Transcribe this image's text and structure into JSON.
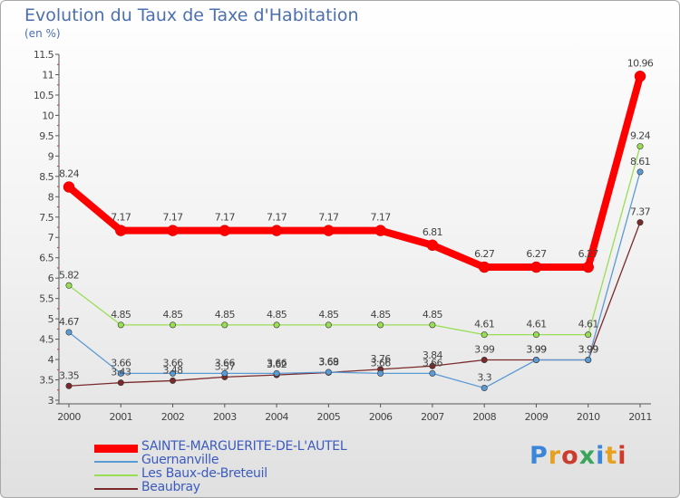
{
  "title": "Evolution du Taux de Taxe d'Habitation",
  "subtitle": "(en %)",
  "logo": {
    "text": "Proxiti",
    "colors": [
      "#3a86d8",
      "#e8a020",
      "#cc3b2b",
      "#3aa55a",
      "#3a86d8",
      "#e8a020",
      "#cc3b2b"
    ]
  },
  "chart_data": {
    "type": "line",
    "title": "Evolution du Taux de Taxe d'Habitation",
    "ylabel": "(en %)",
    "xlabel": "",
    "x": [
      "2000",
      "2001",
      "2002",
      "2003",
      "2004",
      "2005",
      "2006",
      "2007",
      "2008",
      "2009",
      "2010",
      "2011"
    ],
    "ylim": [
      3,
      11.5
    ],
    "yticks": [
      "3",
      "3.5",
      "4",
      "4.5",
      "5",
      "5.5",
      "6",
      "6.5",
      "7",
      "7.5",
      "8",
      "8.5",
      "9",
      "9.5",
      "10",
      "10.5",
      "11",
      "11.5"
    ],
    "grid": false,
    "series": [
      {
        "name": "SAINTE-MARGUERITE-DE-L'AUTEL",
        "color": "#ff0000",
        "values": [
          8.24,
          7.17,
          7.17,
          7.17,
          7.17,
          7.17,
          7.17,
          6.81,
          6.27,
          6.27,
          6.27,
          10.96
        ],
        "labels": [
          "8.24",
          "7.17",
          "7.17",
          "7.17",
          "7.17",
          "7.17",
          "7.17",
          "6.81",
          "6.27",
          "6.27",
          "6.27",
          "10.96"
        ]
      },
      {
        "name": "Guernanville",
        "color": "#5b9bd5",
        "values": [
          4.67,
          3.66,
          3.66,
          3.66,
          3.66,
          3.69,
          3.66,
          3.66,
          3.3,
          3.99,
          3.99,
          8.61
        ],
        "labels": [
          "4.67",
          "3.66",
          "3.66",
          "3.66",
          "3.66",
          "3.69",
          "3.66",
          "3.66",
          "3.3",
          "3.99",
          "3.99",
          "8.61"
        ]
      },
      {
        "name": "Les Baux-de-Breteuil",
        "color": "#99dd55",
        "values": [
          5.82,
          4.85,
          4.85,
          4.85,
          4.85,
          4.85,
          4.85,
          4.85,
          4.61,
          4.61,
          4.61,
          9.24
        ],
        "labels": [
          "5.82",
          "4.85",
          "4.85",
          "4.85",
          "4.85",
          "4.85",
          "4.85",
          "4.85",
          "4.61",
          "4.61",
          "4.61",
          "9.24"
        ]
      },
      {
        "name": "Beaubray",
        "color": "#7a2a2a",
        "values": [
          3.35,
          3.43,
          3.48,
          3.57,
          3.62,
          3.68,
          3.76,
          3.84,
          3.99,
          3.99,
          3.99,
          7.37
        ],
        "labels": [
          "3.35",
          "3.43",
          "3.48",
          "3.57",
          "3.62",
          "3.68",
          "3.76",
          "3.84",
          "3.99",
          "3.99",
          "3.99",
          "7.37"
        ]
      }
    ]
  }
}
